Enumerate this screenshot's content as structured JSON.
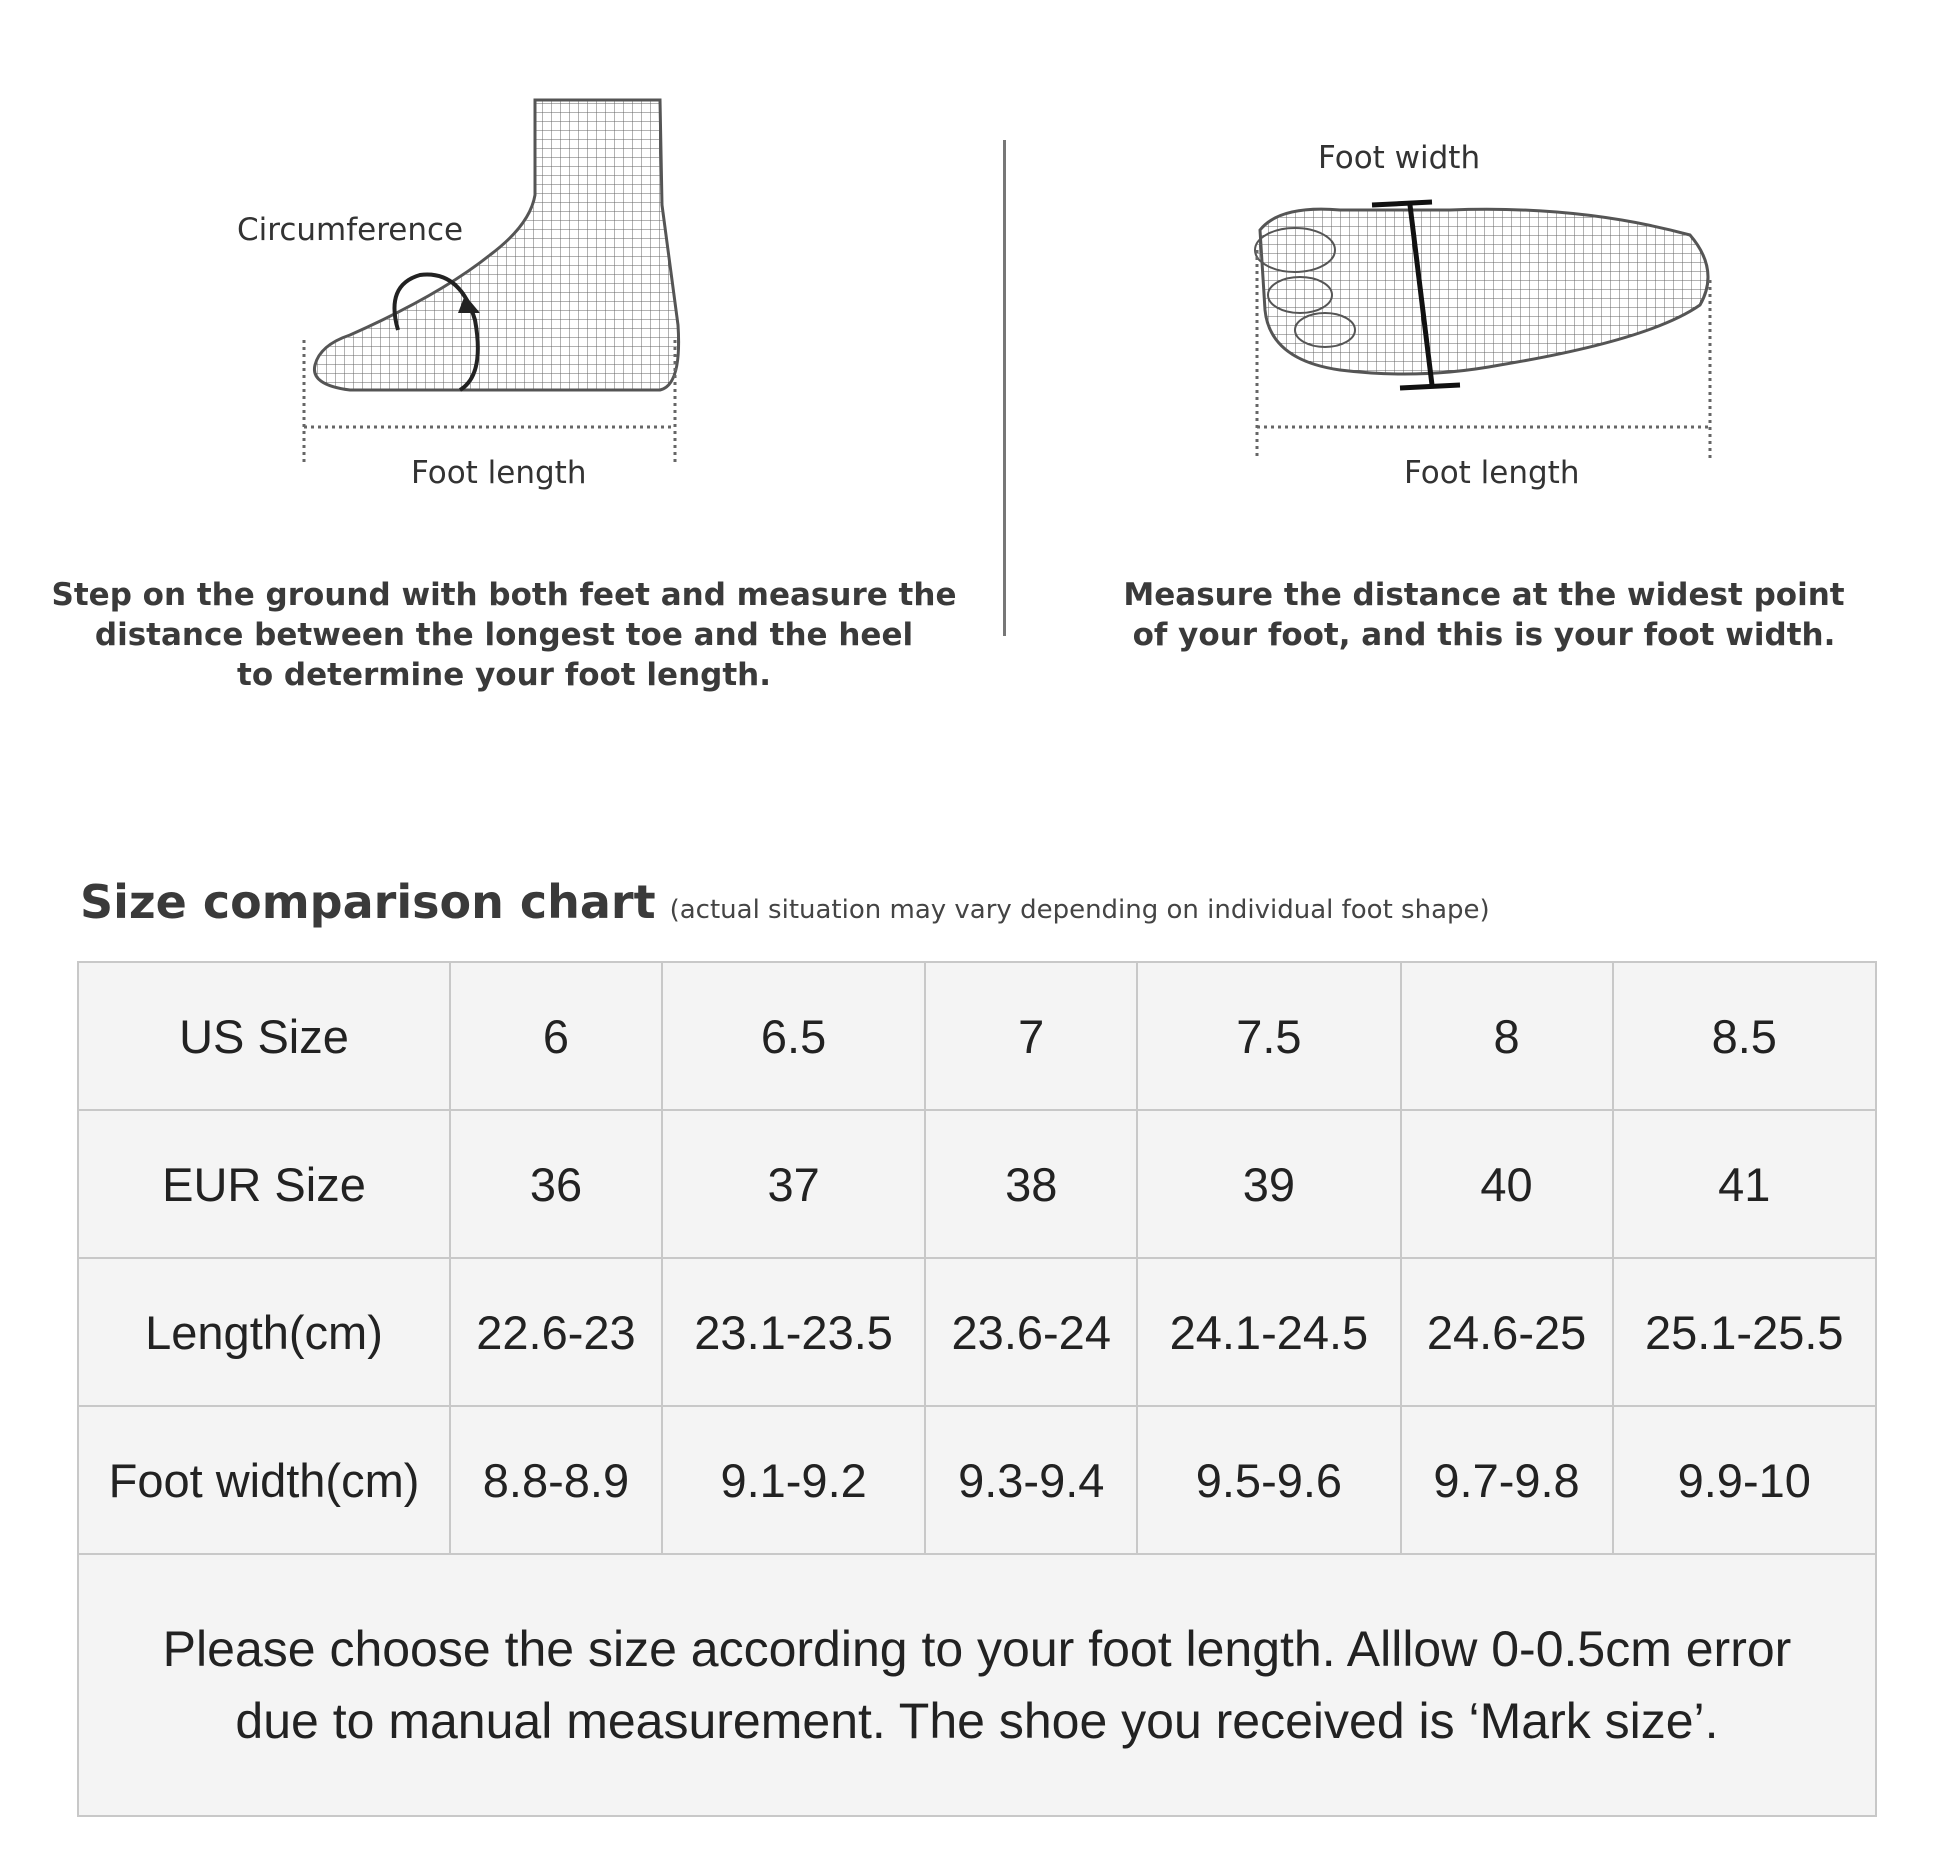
{
  "left_panel": {
    "circumference_label": "Circumference",
    "foot_length_label": "Foot length",
    "instruction_lines": [
      "Step on the ground with both feet and measure the",
      "distance between the longest toe and the heel",
      "to determine your foot length."
    ]
  },
  "right_panel": {
    "foot_width_label": "Foot width",
    "foot_length_label": "Foot length",
    "instruction_lines": [
      "Measure the distance at the widest point",
      "of your foot, and this is your foot width."
    ]
  },
  "size_chart": {
    "title": "Size comparison chart",
    "subtitle": "(actual situation may vary depending on individual foot shape)",
    "rows": [
      {
        "header": "US Size",
        "values": [
          "6",
          "6.5",
          "7",
          "7.5",
          "8",
          "8.5"
        ]
      },
      {
        "header": "EUR Size",
        "values": [
          "36",
          "37",
          "38",
          "39",
          "40",
          "41"
        ]
      },
      {
        "header": "Length(cm)",
        "values": [
          "22.6-23",
          "23.1-23.5",
          "23.6-24",
          "24.1-24.5",
          "24.6-25",
          "25.1-25.5"
        ]
      },
      {
        "header": "Foot width(cm)",
        "values": [
          "8.8-8.9",
          "9.1-9.2",
          "9.3-9.4",
          "9.5-9.6",
          "9.7-9.8",
          "9.9-10"
        ]
      }
    ],
    "note_lines": [
      "Please choose the size according to your foot length. Alllow 0-0.5cm error",
      "due to manual measurement. The shoe you received is ‘Mark size’."
    ]
  }
}
